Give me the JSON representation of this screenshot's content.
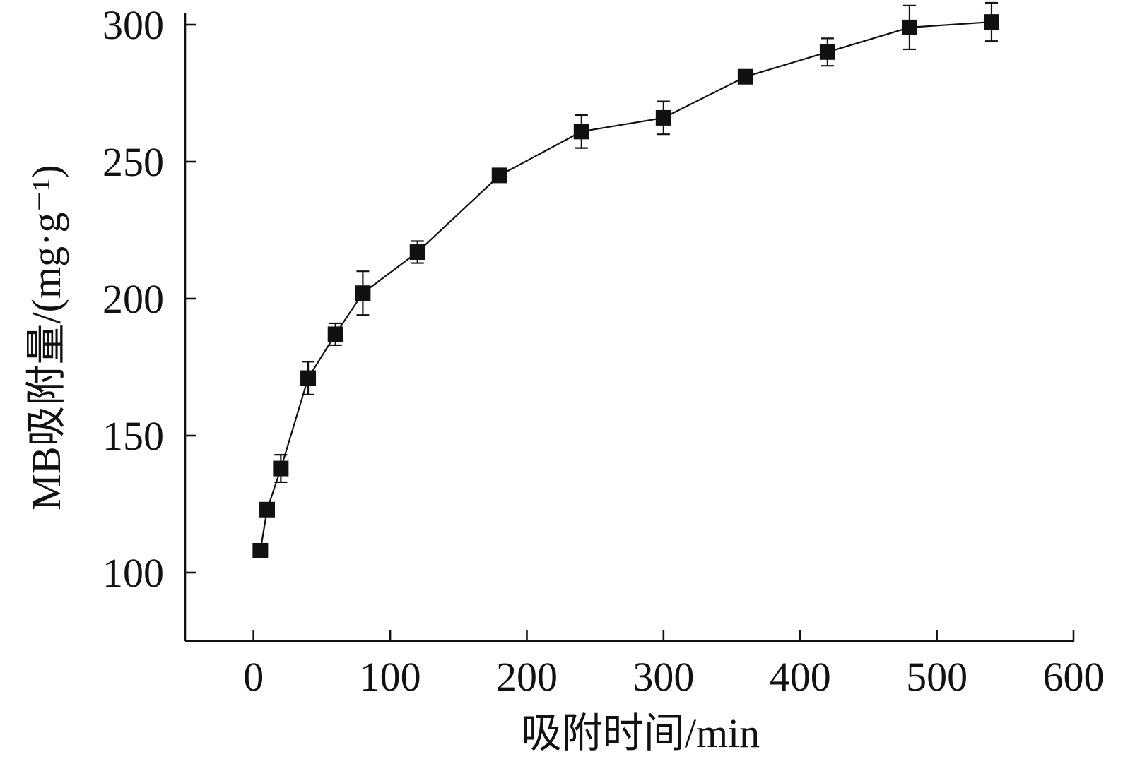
{
  "chart_data": {
    "type": "line",
    "title": "",
    "xlabel": "吸附时间/min",
    "ylabel": "MB吸附量/(mg·g⁻¹)",
    "xlim": [
      -50,
      600
    ],
    "ylim": [
      75,
      300
    ],
    "x_ticks": [
      0,
      100,
      200,
      300,
      400,
      500,
      600
    ],
    "y_ticks": [
      100,
      150,
      200,
      250,
      300
    ],
    "grid": false,
    "legend": "none",
    "marker": "square",
    "color": "#111111",
    "series": [
      {
        "x": [
          5,
          10,
          20,
          40,
          60,
          80,
          120,
          180,
          240,
          300,
          360,
          420,
          480,
          540
        ],
        "y": [
          108,
          123,
          138,
          171,
          187,
          202,
          217,
          245,
          261,
          266,
          281,
          290,
          299,
          301
        ],
        "err": [
          2,
          2,
          5,
          6,
          4,
          8,
          4,
          2,
          6,
          6,
          2,
          5,
          8,
          7
        ]
      }
    ]
  }
}
